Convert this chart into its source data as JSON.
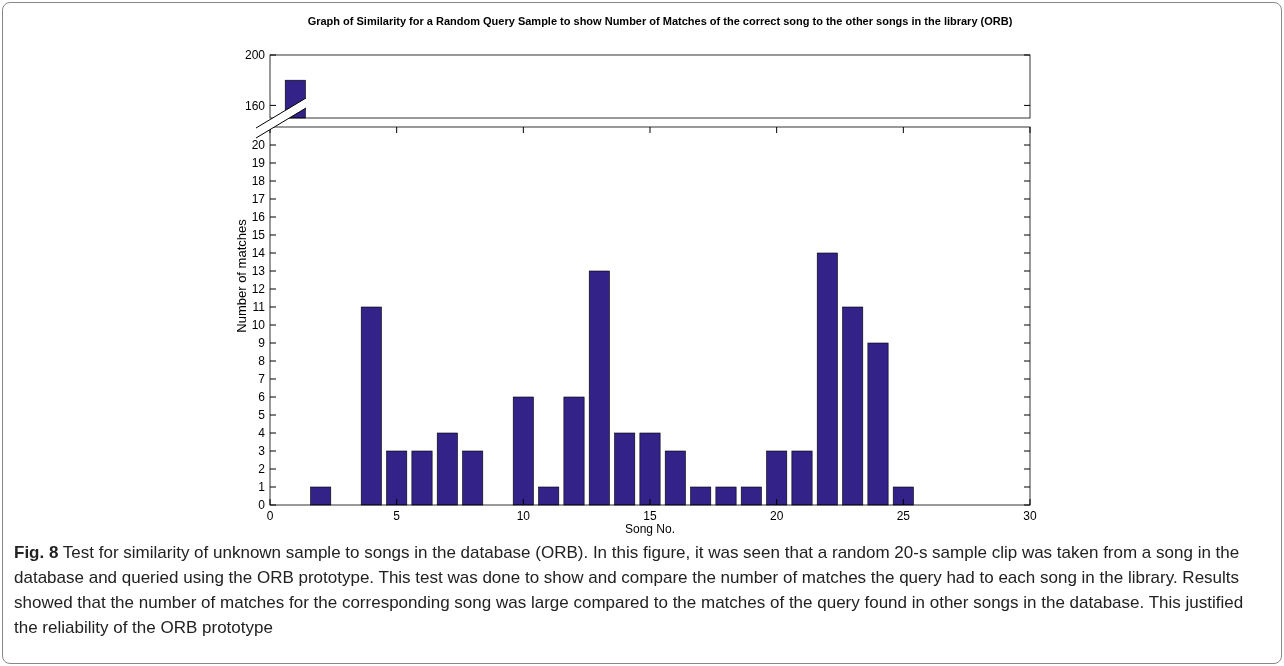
{
  "chart_data": [
    {
      "type": "bar",
      "title": "Graph of Similarity for a Random Query Sample to show Number of Matches of the correct song to the other songs in the library (ORB)",
      "x": [
        1
      ],
      "values": [
        180
      ],
      "color": "#332288",
      "xlim": [
        0,
        30
      ],
      "ylim": [
        150,
        200
      ],
      "yticks": [
        160,
        200
      ],
      "tick_labels": "y"
    },
    {
      "type": "bar",
      "x": [
        2,
        3,
        4,
        5,
        6,
        7,
        8,
        9,
        10,
        11,
        12,
        13,
        14,
        15,
        16,
        17,
        18,
        19,
        20,
        21,
        22,
        23,
        24,
        25
      ],
      "values": [
        1,
        0,
        11,
        3,
        3,
        4,
        3,
        0,
        6,
        1,
        6,
        13,
        4,
        4,
        3,
        1,
        1,
        1,
        3,
        3,
        14,
        11,
        9,
        1
      ],
      "color": "#332288",
      "xlim": [
        0,
        30
      ],
      "xticks": [
        0,
        5,
        10,
        15,
        20,
        25,
        30
      ],
      "ylim": [
        0,
        21
      ],
      "yticks": [
        0,
        1,
        2,
        3,
        4,
        5,
        6,
        7,
        8,
        9,
        10,
        11,
        12,
        13,
        14,
        15,
        16,
        17,
        18,
        19,
        20
      ],
      "xlabel": "Song No.",
      "ylabel": "Number of matches",
      "annotations": [
        "Fig. 8 Test for similarity of unknown sample to songs in the database (ORB). In this figure, it was seen that a random 20-s sample clip was taken from a song in the database and queried using the ORB prototype. This test was done to show and compare the number of matches the query had to each song in the library. Results showed that the number of matches for the corresponding song was large compared to the matches of the query found in other songs in the database. This justified the reliability of the ORB prototype"
      ]
    }
  ]
}
